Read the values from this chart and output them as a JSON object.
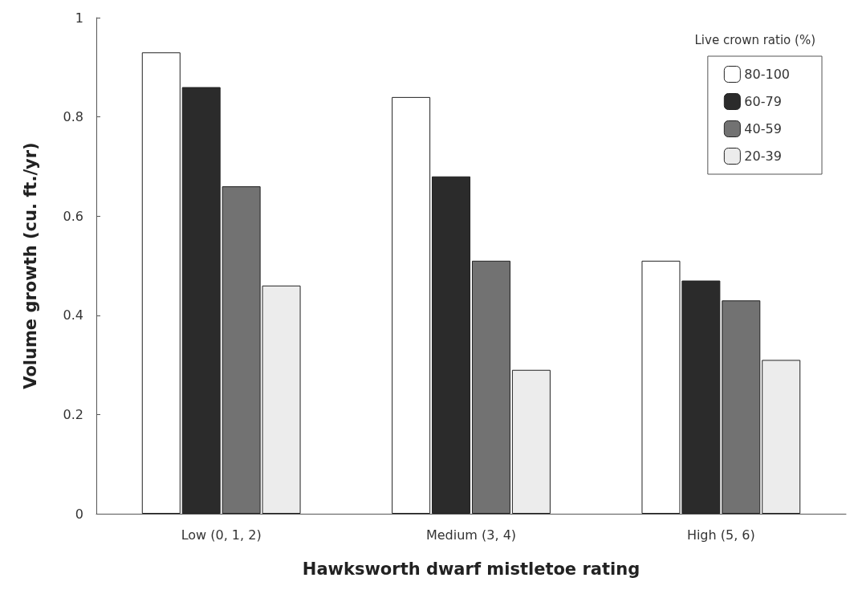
{
  "chart_data": {
    "type": "bar",
    "xlabel": "Hawksworth dwarf mistletoe rating",
    "ylabel": "Volume growth (cu. ft./yr)",
    "legend_title": "Live crown ratio (%)",
    "categories": [
      "Low (0, 1, 2)",
      "Medium (3, 4)",
      "High (5, 6)"
    ],
    "series": [
      {
        "name": "80-100",
        "color": "#ffffff",
        "values": [
          0.93,
          0.84,
          0.51
        ]
      },
      {
        "name": "60-79",
        "color": "#2b2b2b",
        "values": [
          0.86,
          0.68,
          0.47
        ]
      },
      {
        "name": "40-59",
        "color": "#727272",
        "values": [
          0.66,
          0.51,
          0.43
        ]
      },
      {
        "name": "20-39",
        "color": "#ececec",
        "values": [
          0.46,
          0.29,
          0.31
        ]
      }
    ],
    "ylim": [
      0,
      1
    ],
    "yticks": [
      0,
      0.2,
      0.4,
      0.6,
      0.8,
      1
    ],
    "grid": false,
    "legend": "top right"
  }
}
